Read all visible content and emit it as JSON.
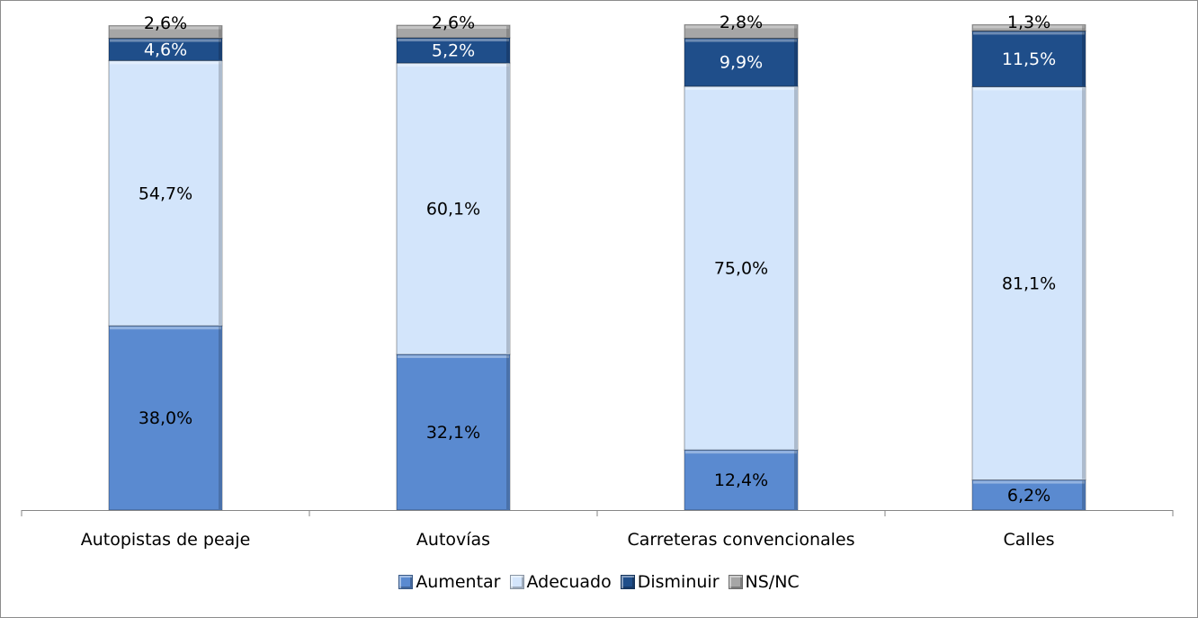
{
  "chart_data": {
    "type": "bar",
    "stacked": true,
    "categories": [
      "Autopistas de peaje",
      "Autovías",
      "Carreteras convencionales",
      "Calles"
    ],
    "series": [
      {
        "name": "Aumentar",
        "color": "#5a8ad0",
        "label_color": "#000000",
        "values": [
          38.0,
          32.1,
          12.4,
          6.2
        ]
      },
      {
        "name": "Adecuado",
        "color": "#d3e5fb",
        "label_color": "#000000",
        "values": [
          54.7,
          60.1,
          75.0,
          81.1
        ]
      },
      {
        "name": "Disminuir",
        "color": "#1f4e8a",
        "label_color": "#ffffff",
        "values": [
          4.6,
          5.2,
          9.9,
          11.5
        ]
      },
      {
        "name": "NS/NC",
        "color": "#a6a6a6",
        "label_color": "#000000",
        "values": [
          2.6,
          2.6,
          2.8,
          1.3
        ]
      }
    ],
    "data_labels": [
      [
        "38,0%",
        "32,1%",
        "12,4%",
        "6,2%"
      ],
      [
        "54,7%",
        "60,1%",
        "75,0%",
        "81,1%"
      ],
      [
        "4,6%",
        "5,2%",
        "9,9%",
        "11,5%"
      ],
      [
        "2,6%",
        "2,6%",
        "2,8%",
        "1,3%"
      ]
    ],
    "ylim": [
      0,
      100
    ],
    "grid": false,
    "legend_position": "bottom"
  }
}
